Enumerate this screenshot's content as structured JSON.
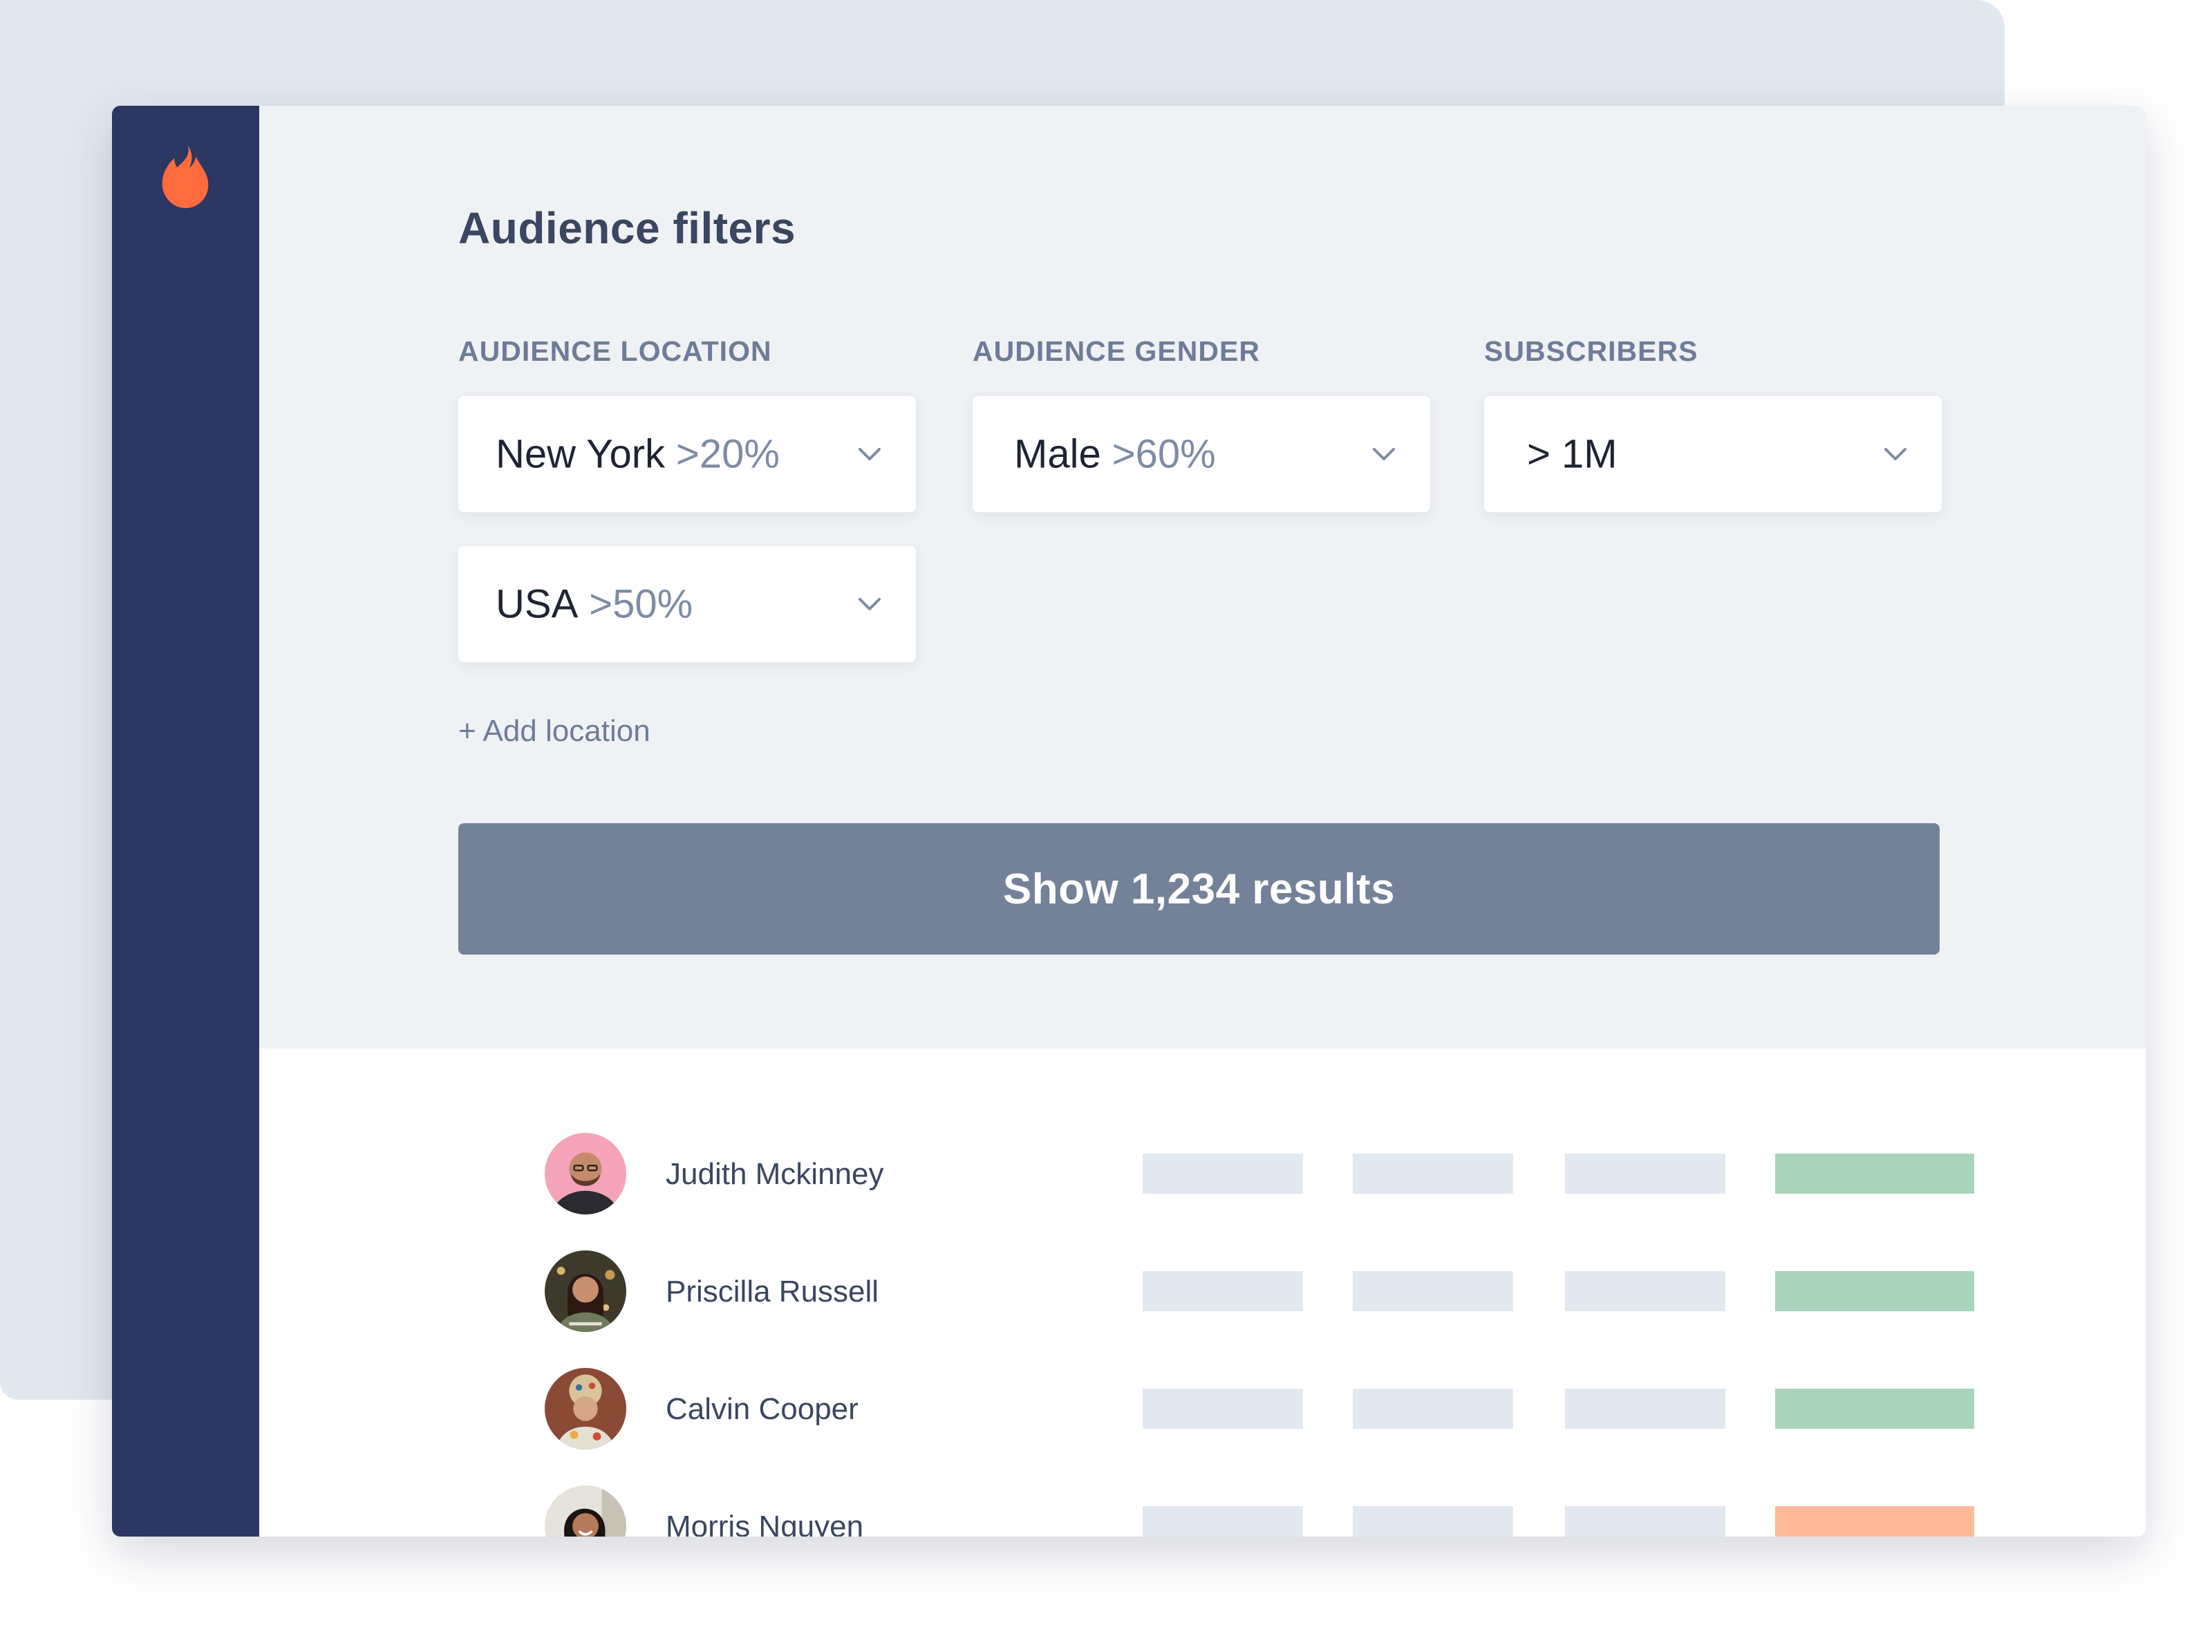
{
  "title": "Audience filters",
  "filters": {
    "location_label": "AUDIENCE LOCATION",
    "gender_label": "AUDIENCE GENDER",
    "subscribers_label": "SUBSCRIBERS",
    "location_1": {
      "value": "New York",
      "pct": ">20%"
    },
    "location_2": {
      "value": "USA",
      "pct": ">50%"
    },
    "gender": {
      "value": "Male",
      "pct": ">60%"
    },
    "subscribers": {
      "value": "> 1M"
    },
    "add_location": "+ Add location"
  },
  "show_button": "Show 1,234 results",
  "results": [
    {
      "name": "Judith Mckinney",
      "status_color": "#a8d4bb"
    },
    {
      "name": "Priscilla Russell",
      "status_color": "#a8d4bb"
    },
    {
      "name": "Calvin Cooper",
      "status_color": "#a8d4bb"
    },
    {
      "name": "Morris Nguyen",
      "status_color": "#ffbb99"
    }
  ],
  "colors": {
    "sidebar": "#2c3763",
    "accent": "#ff6b3d",
    "button": "#738199",
    "placeholder_bar": "#e2e8f0"
  },
  "icons": {
    "logo": "flame-icon",
    "dropdown": "chevron-down-icon"
  }
}
